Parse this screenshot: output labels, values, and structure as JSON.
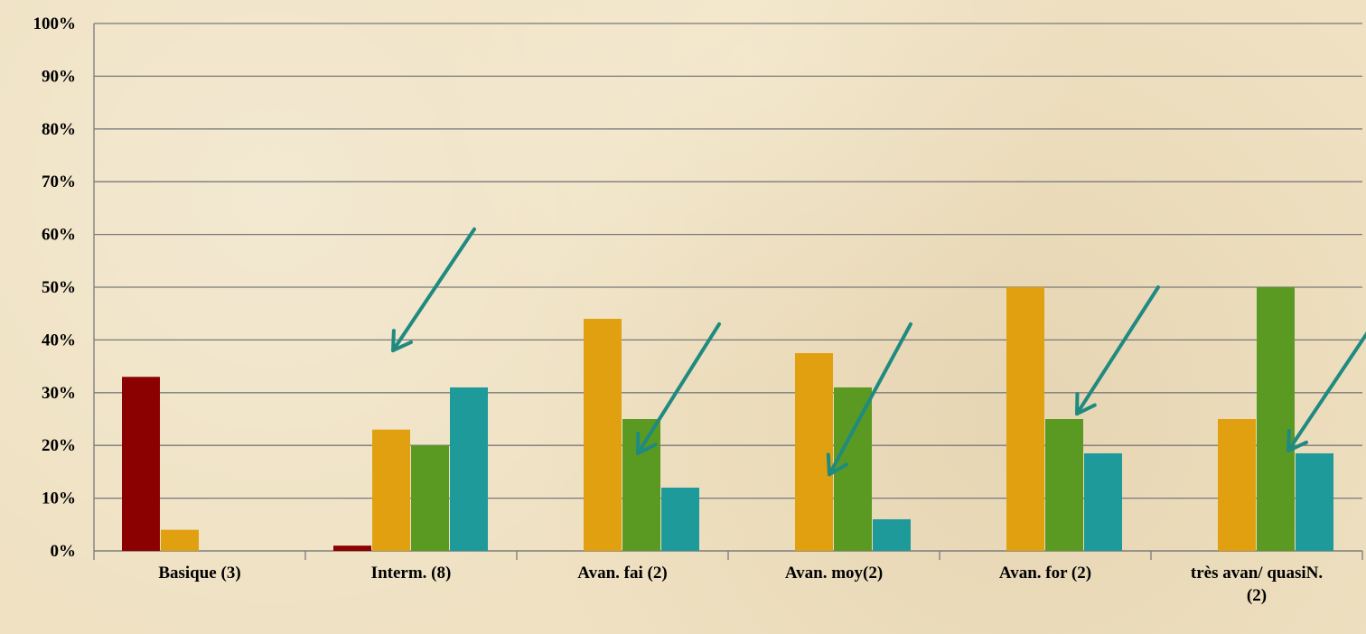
{
  "chart_data": {
    "type": "bar",
    "categories": [
      [
        "Basique (3)"
      ],
      [
        "Interm. (8)"
      ],
      [
        "Avan. fai (2)"
      ],
      [
        "Avan. moy(2)"
      ],
      [
        "Avan. for (2)"
      ],
      [
        "très avan/ quasiN.",
        "(2)"
      ]
    ],
    "series": [
      {
        "color": "#8b0000",
        "values": [
          33,
          1,
          0,
          0,
          0,
          0
        ]
      },
      {
        "color": "#e0a010",
        "values": [
          4,
          23,
          44,
          37.5,
          50,
          25
        ]
      },
      {
        "color": "#5a9a22",
        "values": [
          0,
          20,
          25,
          31,
          25,
          50
        ]
      },
      {
        "color": "#1f9a9a",
        "values": [
          0,
          31,
          12,
          6,
          18.5,
          18.5
        ]
      }
    ],
    "ylim": [
      0,
      100
    ],
    "ytick_step": 10,
    "ytick_suffix": "%",
    "grid": true,
    "arrow_color": "#1f8a80",
    "annotations": [
      {
        "type": "arrow",
        "from": {
          "category": 1,
          "y": 61
        },
        "to": {
          "category": 1,
          "y": 38
        }
      },
      {
        "type": "arrow",
        "from": {
          "category": 2,
          "y": 43
        },
        "to": {
          "category": 2,
          "y": 18.5
        }
      },
      {
        "type": "arrow",
        "from": {
          "category": 3,
          "y": 43
        },
        "to": {
          "category": 3,
          "y": 14.5
        }
      },
      {
        "type": "arrow",
        "from": {
          "category": 4,
          "y": 50
        },
        "to": {
          "category": 4,
          "y": 26
        }
      },
      {
        "type": "arrow",
        "from": {
          "category": 5,
          "y": 42
        },
        "to": {
          "category": 5,
          "y": 19
        }
      }
    ]
  }
}
